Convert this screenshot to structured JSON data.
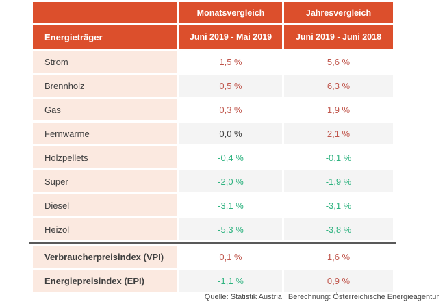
{
  "table": {
    "header": {
      "corner": "",
      "monthly_title": "Monatsvergleich",
      "yearly_title": "Jahresvergleich",
      "category_title": "Energieträger",
      "monthly_period": "Juni 2019 - Mai 2019",
      "yearly_period": "Juni 2019 - Juni 2018"
    },
    "rows": [
      {
        "key": "strom",
        "label": "Strom",
        "monthly": "1,5 %",
        "yearly": "5,6 %",
        "monthly_trend": "up",
        "yearly_trend": "up",
        "bold": false
      },
      {
        "key": "brennholz",
        "label": "Brennholz",
        "monthly": "0,5 %",
        "yearly": "6,3 %",
        "monthly_trend": "up",
        "yearly_trend": "up",
        "bold": false
      },
      {
        "key": "gas",
        "label": "Gas",
        "monthly": "0,3 %",
        "yearly": "1,9 %",
        "monthly_trend": "up",
        "yearly_trend": "up",
        "bold": false
      },
      {
        "key": "fernwaerme",
        "label": "Fernwärme",
        "monthly": "0,0 %",
        "yearly": "2,1 %",
        "monthly_trend": "zero",
        "yearly_trend": "up",
        "bold": false
      },
      {
        "key": "holzpellets",
        "label": "Holzpellets",
        "monthly": "-0,4 %",
        "yearly": "-0,1 %",
        "monthly_trend": "down",
        "yearly_trend": "down",
        "bold": false
      },
      {
        "key": "super",
        "label": "Super",
        "monthly": "-2,0 %",
        "yearly": "-1,9 %",
        "monthly_trend": "down",
        "yearly_trend": "down",
        "bold": false
      },
      {
        "key": "diesel",
        "label": "Diesel",
        "monthly": "-3,1 %",
        "yearly": "-3,1 %",
        "monthly_trend": "down",
        "yearly_trend": "down",
        "bold": false
      },
      {
        "key": "heizoel",
        "label": "Heizöl",
        "monthly": "-5,3 %",
        "yearly": "-3,8 %",
        "monthly_trend": "down",
        "yearly_trend": "down",
        "bold": false
      },
      {
        "key": "vpi",
        "label": "Verbraucherpreisindex (VPI)",
        "monthly": "0,1 %",
        "yearly": "1,6 %",
        "monthly_trend": "up",
        "yearly_trend": "up",
        "bold": true
      },
      {
        "key": "epi",
        "label": "Energiepreisindex (EPI)",
        "monthly": "-1,1 %",
        "yearly": "0,9 %",
        "monthly_trend": "down",
        "yearly_trend": "up",
        "bold": true
      }
    ],
    "separator_after_row": "heizoel"
  },
  "footer": {
    "source": "Quelle: Statistik Austria | Berechnung: Österreichische Energieagentur"
  },
  "colors": {
    "header_bg": "#dc4f2c",
    "label_bg": "#fbe9e0",
    "alt_row_bg": "#f4f4f4",
    "positive_value": "#c0564c",
    "negative_value": "#2fb380",
    "zero_value": "#404040",
    "separator_line": "#595959"
  },
  "chart_data": {
    "type": "table",
    "title": "",
    "unit": "%",
    "categories": [
      "Strom",
      "Brennholz",
      "Gas",
      "Fernwärme",
      "Holzpellets",
      "Super",
      "Diesel",
      "Heizöl",
      "Verbraucherpreisindex (VPI)",
      "Energiepreisindex (EPI)"
    ],
    "series": [
      {
        "name": "Monatsvergleich Juni 2019 - Mai 2019",
        "values": [
          1.5,
          0.5,
          0.3,
          0.0,
          -0.4,
          -2.0,
          -3.1,
          -5.3,
          0.1,
          -1.1
        ]
      },
      {
        "name": "Jahresvergleich Juni 2019 - Juni 2018",
        "values": [
          5.6,
          6.3,
          1.9,
          2.1,
          -0.1,
          -1.9,
          -3.1,
          -3.8,
          1.6,
          0.9
        ]
      }
    ],
    "source": "Quelle: Statistik Austria | Berechnung: Österreichische Energieagentur"
  }
}
